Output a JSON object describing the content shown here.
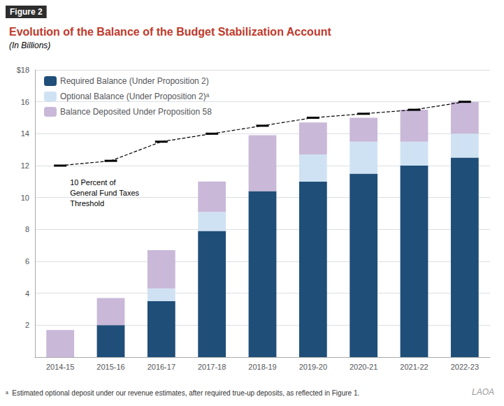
{
  "chart_data": {
    "type": "bar",
    "stacked": true,
    "figure_label": "Figure 2",
    "title": "Evolution of the Balance of the Budget Stabilization Account",
    "subtitle": "(In Billions)",
    "footnote": "ᵃ  Estimated optional deposit under our revenue estimates, after required true-up deposits, as reflected in Figure 1.",
    "logo": "LAOA",
    "categories": [
      "2014-15",
      "2015-16",
      "2016-17",
      "2017-18",
      "2018-19",
      "2019-20",
      "2020-21",
      "2021-22",
      "2022-23"
    ],
    "series": [
      {
        "name": "Required Balance (Under Proposition 2)",
        "color": "#1f4e79",
        "values": [
          0.0,
          2.0,
          3.5,
          7.9,
          10.4,
          11.0,
          11.5,
          12.0,
          12.5
        ]
      },
      {
        "name": "Optional Balance (Under Proposition 2)ᵃ",
        "color": "#cfe2f3",
        "values": [
          0.0,
          0.0,
          0.8,
          1.2,
          0.0,
          1.7,
          2.0,
          1.5,
          1.5
        ]
      },
      {
        "name": "Balance Deposited Under Proposition 58",
        "color": "#c9b8d8",
        "values": [
          1.7,
          1.7,
          2.4,
          1.9,
          3.5,
          2.0,
          1.5,
          2.0,
          2.0
        ]
      }
    ],
    "threshold": {
      "label": "10 Percent of\nGeneral Fund Taxes\nThreshold",
      "type": "line",
      "color": "#000000",
      "line_style": "dashed",
      "marker": "hline",
      "values": [
        12.0,
        12.3,
        13.5,
        14.0,
        14.5,
        15.0,
        15.25,
        15.5,
        16.0
      ]
    },
    "ylim": [
      0,
      18
    ],
    "yticks": [
      2,
      4,
      6,
      8,
      10,
      12,
      14,
      16,
      {
        "value": 18,
        "label": "$18"
      }
    ],
    "grid": true,
    "legend": "upper left"
  }
}
